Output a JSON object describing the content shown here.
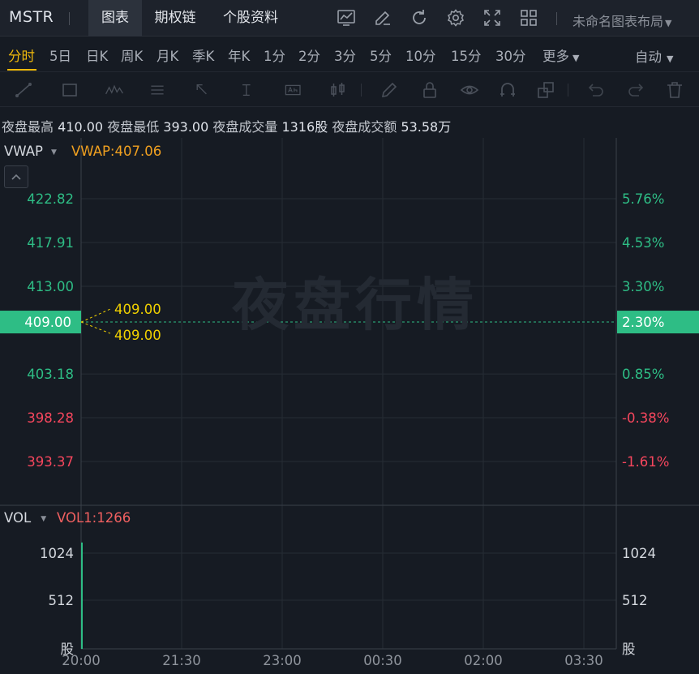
{
  "header": {
    "ticker": "MSTR",
    "tabs": [
      {
        "label": "图表",
        "active": true
      },
      {
        "label": "期权链",
        "active": false
      },
      {
        "label": "个股资料",
        "active": false
      }
    ],
    "layout_label": "未命名图表布局"
  },
  "periods": {
    "items": [
      "分时",
      "5日",
      "日K",
      "周K",
      "月K",
      "季K",
      "年K",
      "1分",
      "2分",
      "3分",
      "5分",
      "10分",
      "15分",
      "30分",
      "更多"
    ],
    "active": "分时",
    "auto_label": "自动"
  },
  "info": {
    "high_label": "夜盘最高",
    "high_value": "410.00",
    "low_label": "夜盘最低",
    "low_value": "393.00",
    "vol_label": "夜盘成交量",
    "vol_value": "1316股",
    "amt_label": "夜盘成交额",
    "amt_value": "53.58万"
  },
  "watermark": "夜盘行情",
  "chart_data": {
    "type": "line",
    "x_ticks": [
      "20:00",
      "21:30",
      "23:00",
      "00:30",
      "02:00",
      "03:30"
    ],
    "price_panel": {
      "indicator": "VWAP",
      "indicator_value_label": "VWAP:407.06",
      "left_ticks": [
        "422.82",
        "417.91",
        "413.00",
        "409.00",
        "403.18",
        "398.28",
        "393.37"
      ],
      "right_ticks": [
        "5.76%",
        "4.53%",
        "3.30%",
        "2.30%",
        "0.85%",
        "-0.38%",
        "-1.61%"
      ],
      "current_price": "409.00",
      "current_change": "2.30%",
      "annotations": [
        "409.00",
        "409.00"
      ],
      "ylim": [
        393.37,
        422.82
      ]
    },
    "volume_panel": {
      "indicator": "VOL",
      "indicator_value_label": "VOL1:1266",
      "left_ticks": [
        "1024",
        "512"
      ],
      "right_ticks": [
        "1024",
        "512"
      ],
      "unit": "股",
      "bar_value": 1266,
      "ylim": [
        0,
        1536
      ]
    },
    "colors": {
      "up": "#2ebd85",
      "down": "#f6465d",
      "vwap": "#f0a020",
      "annotation": "#f0d000"
    }
  }
}
